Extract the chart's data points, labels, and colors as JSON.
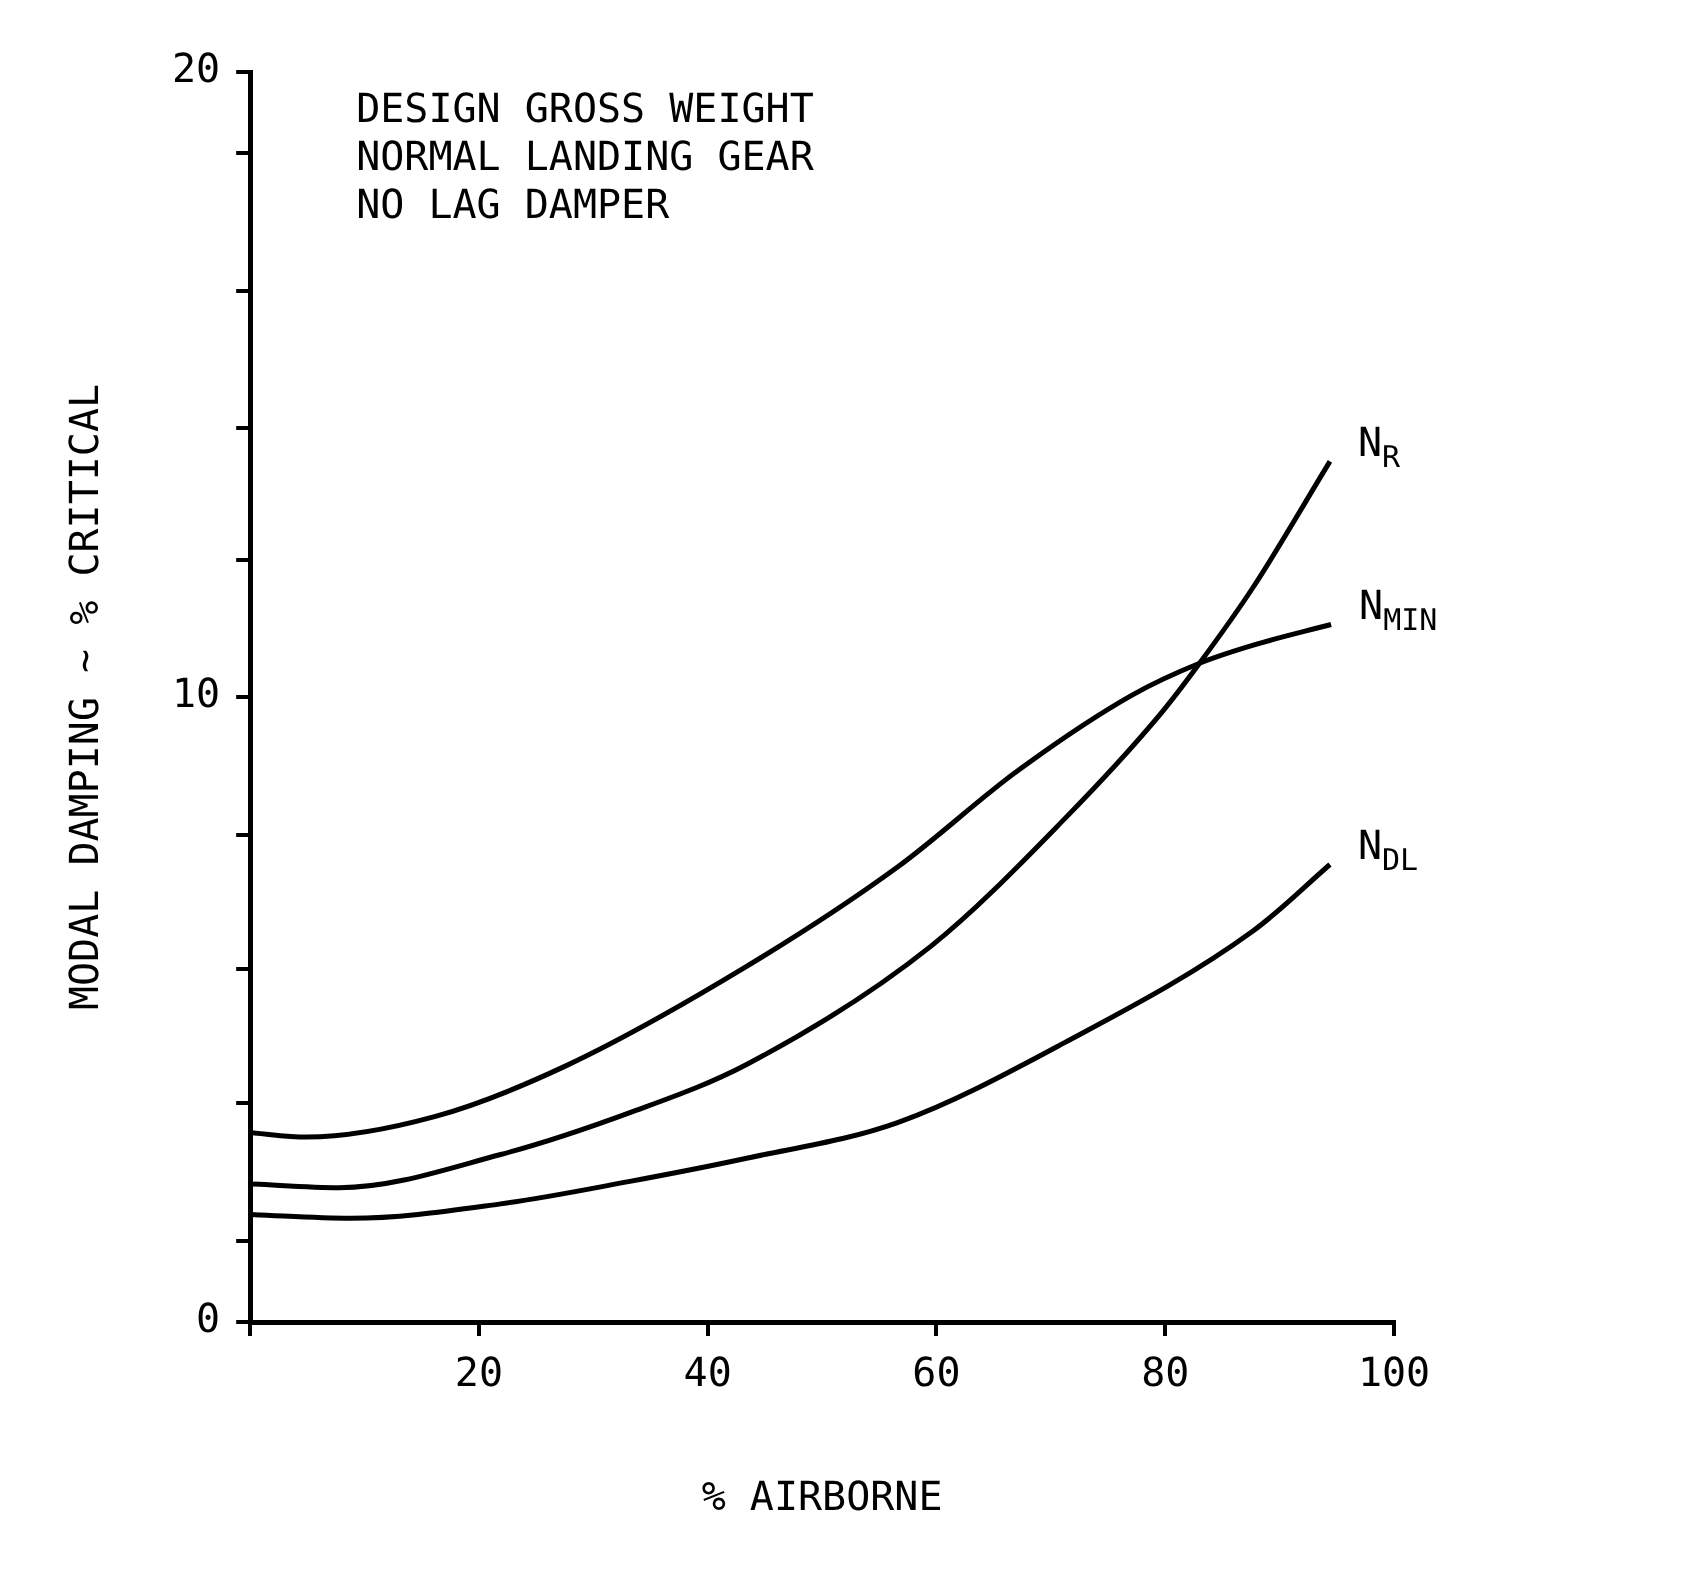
{
  "chart_data": {
    "type": "line",
    "xlabel": "% AIRBORNE",
    "ylabel": "MODAL DAMPING ~ % CRITICAL",
    "xlim": [
      0,
      100
    ],
    "xticks": [
      {
        "value": 0,
        "label": null
      },
      20,
      40,
      60,
      80,
      100
    ],
    "ylim": [
      0,
      20
    ],
    "yticks": [
      0,
      {
        "value": 1.3,
        "label": null
      },
      {
        "value": 3.5,
        "label": null
      },
      {
        "value": 5.65,
        "label": null
      },
      {
        "value": 7.8,
        "label": null
      },
      10,
      {
        "value": 12.2,
        "label": null
      },
      {
        "value": 14.3,
        "label": null
      },
      {
        "value": 16.5,
        "label": null
      },
      {
        "value": 18.7,
        "label": null
      },
      20
    ],
    "grid": false,
    "legend": false,
    "marker": "none",
    "line_style": "solid",
    "annotations": [
      "DESIGN GROSS WEIGHT",
      "NORMAL LANDING GEAR",
      "NO LAG DAMPER"
    ],
    "series": [
      {
        "name": "N$_{R}$",
        "color": "#000000",
        "x": [
          0,
          7.8,
          21.9,
          33.2,
          43.4,
          59.5,
          71.2,
          79.5,
          83,
          87.7,
          94.4
        ],
        "values": [
          2.21,
          2.15,
          2.68,
          3.35,
          4.12,
          6.01,
          8.05,
          9.71,
          10.54,
          11.76,
          13.77
        ]
      },
      {
        "name": "N$_{MIN}$",
        "color": "#000000",
        "x": [
          0,
          4.9,
          16.2,
          27.5,
          43.4,
          56.6,
          67.1,
          77.1,
          83,
          87.7,
          94.5
        ],
        "values": [
          3.03,
          2.96,
          3.29,
          4.09,
          5.69,
          7.28,
          8.82,
          10.03,
          10.54,
          10.83,
          11.16
        ]
      },
      {
        "name": "N$_{DL}$",
        "color": "#000000",
        "x": [
          0,
          8.8,
          21.9,
          33.2,
          43.4,
          56.6,
          71.2,
          87.7,
          94.4
        ],
        "values": [
          1.72,
          1.66,
          1.89,
          2.25,
          2.62,
          3.19,
          4.47,
          6.26,
          7.32
        ]
      }
    ]
  }
}
